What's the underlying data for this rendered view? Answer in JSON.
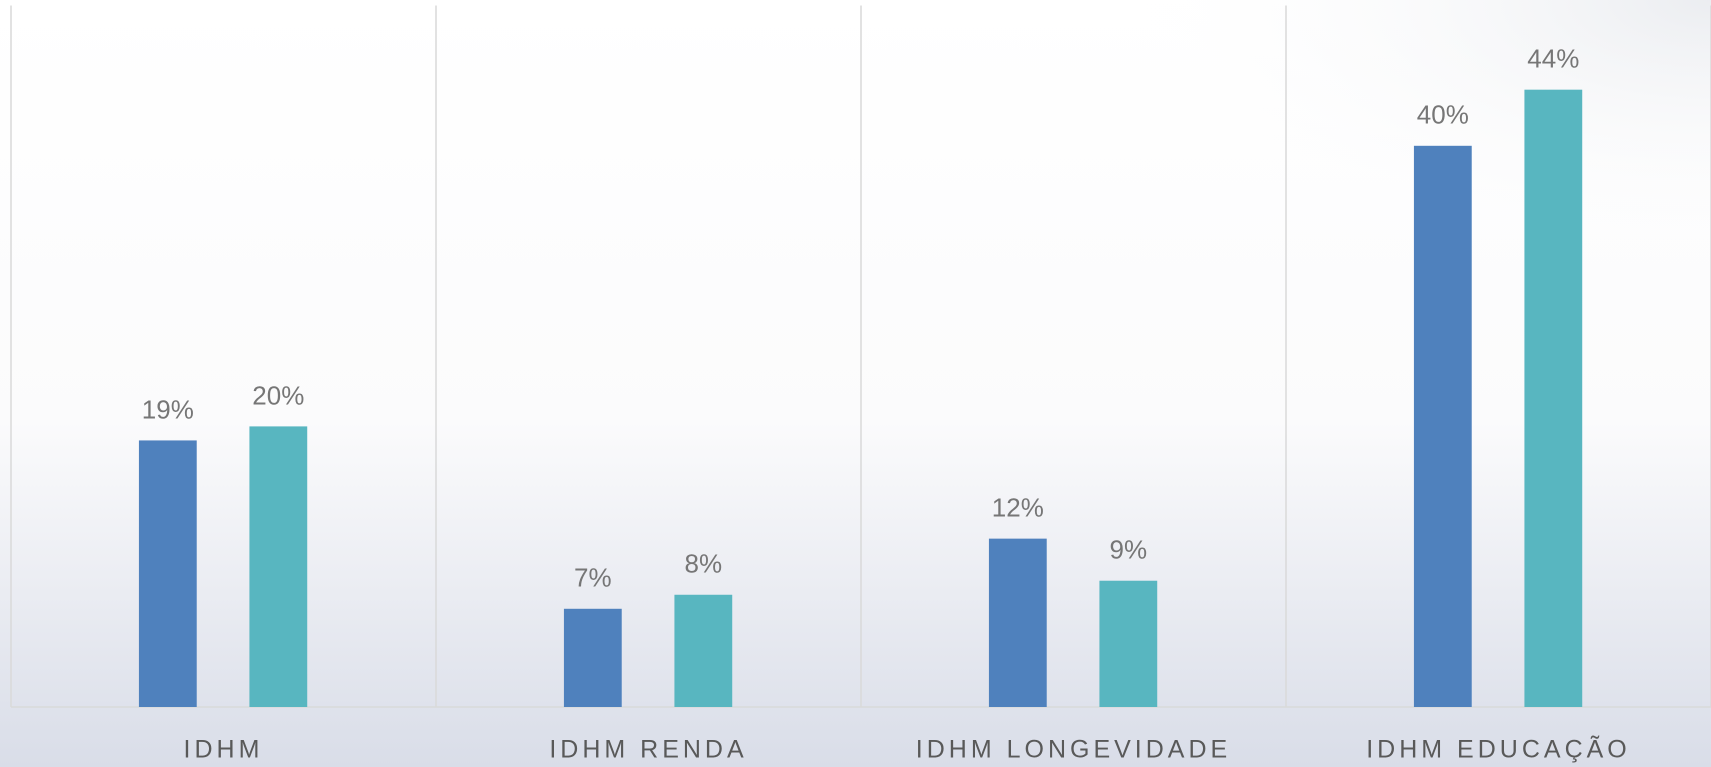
{
  "chart_data": {
    "type": "bar",
    "categories": [
      "IDHM",
      "IDHM RENDA",
      "IDHM LONGEVIDADE",
      "IDHM EDUCAÇÃO"
    ],
    "series": [
      {
        "color": "#4f81bd",
        "values": [
          19,
          7,
          12,
          40
        ],
        "value_labels": [
          "19%",
          "7%",
          "12%",
          "40%"
        ]
      },
      {
        "color": "#58b6c0",
        "values": [
          20,
          8,
          9,
          44
        ],
        "value_labels": [
          "20%",
          "8%",
          "9%",
          "44%"
        ]
      }
    ],
    "ylim": [
      0,
      50
    ]
  }
}
